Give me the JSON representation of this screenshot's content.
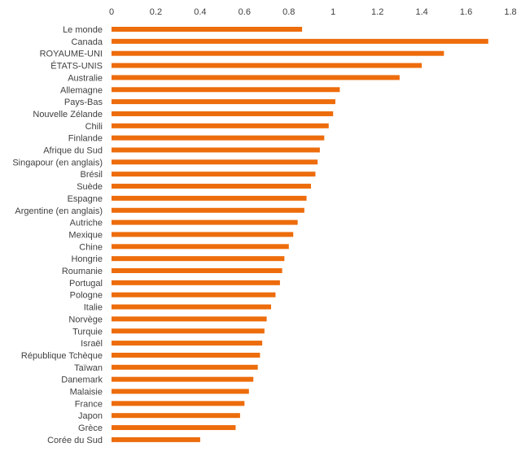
{
  "chart_data": {
    "type": "bar",
    "orientation": "horizontal",
    "title": "",
    "xlabel": "",
    "ylabel": "",
    "xlim": [
      0,
      1.8
    ],
    "xticks": [
      0,
      0.2,
      0.4,
      0.6,
      0.8,
      1,
      1.2,
      1.4,
      1.6,
      1.8
    ],
    "x_axis_position": "top",
    "grid": false,
    "legend": "none",
    "bar_color": "#ed6c0b",
    "categories": [
      "Le monde",
      "Canada",
      "ROYAUME-UNI",
      "ÉTATS-UNIS",
      "Australie",
      "Allemagne",
      "Pays-Bas",
      "Nouvelle Zélande",
      "Chili",
      "Finlande",
      "Afrique du Sud",
      "Singapour (en anglais)",
      "Brésil",
      "Suède",
      "Espagne",
      "Argentine (en anglais)",
      "Autriche",
      "Mexique",
      "Chine",
      "Hongrie",
      "Roumanie",
      "Portugal",
      "Pologne",
      "Italie",
      "Norvège",
      "Turquie",
      "Israël",
      "République Tchèque",
      "Taïwan",
      "Danemark",
      "Malaisie",
      "France",
      "Japon",
      "Grèce",
      "Corée du Sud"
    ],
    "values": [
      0.86,
      1.7,
      1.5,
      1.4,
      1.3,
      1.03,
      1.01,
      1.0,
      0.98,
      0.96,
      0.94,
      0.93,
      0.92,
      0.9,
      0.88,
      0.87,
      0.84,
      0.82,
      0.8,
      0.78,
      0.77,
      0.76,
      0.74,
      0.72,
      0.7,
      0.69,
      0.68,
      0.67,
      0.66,
      0.64,
      0.62,
      0.6,
      0.58,
      0.56,
      0.4
    ]
  }
}
